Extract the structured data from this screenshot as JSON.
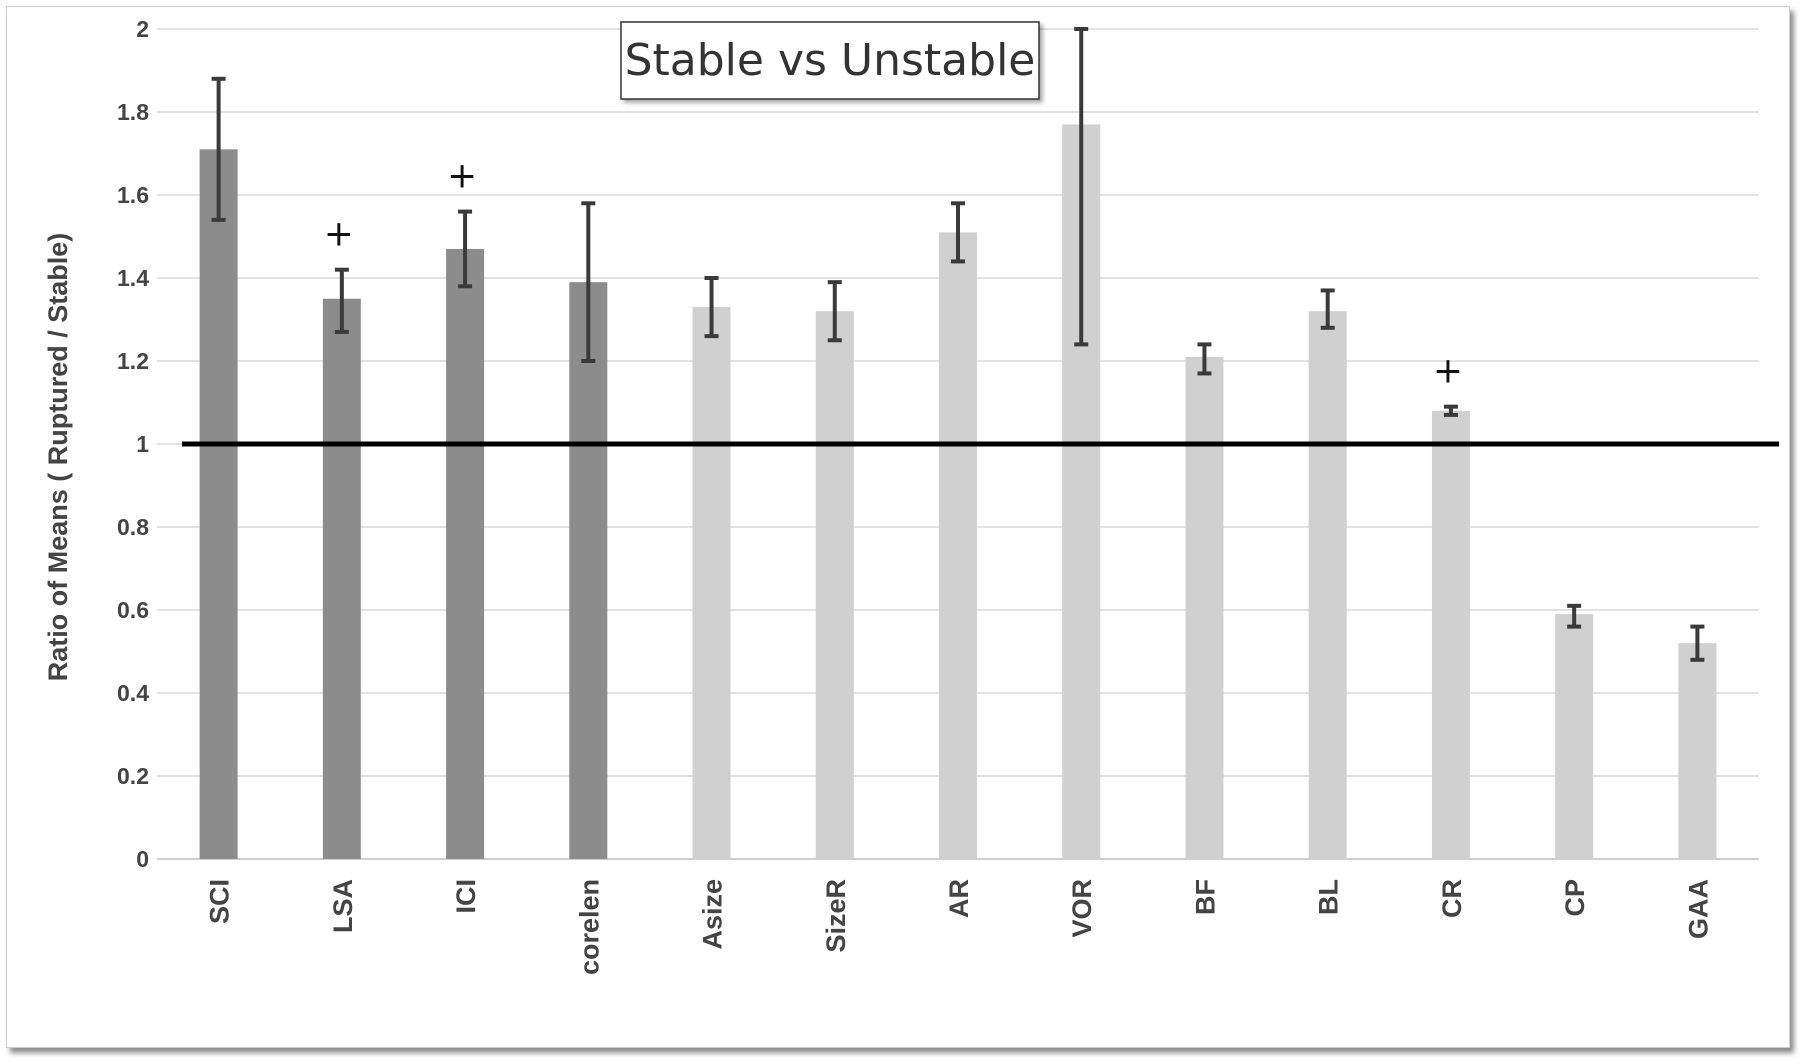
{
  "chart_data": {
    "type": "bar",
    "title": "Stable vs Unstable",
    "ylabel": "Ratio of Means ( Ruptured / Stable)",
    "xlabel": "",
    "ylim": [
      0,
      2
    ],
    "yticks": [
      "0",
      "0.2",
      "0.4",
      "0.6",
      "0.8",
      "1",
      "1.2",
      "1.4",
      "1.6",
      "1.8",
      "2"
    ],
    "grid": true,
    "reference_line": 1,
    "categories": [
      "SCI",
      "LSA",
      "ICI",
      "corelen",
      "Asize",
      "SizeR",
      "AR",
      "VOR",
      "BF",
      "BL",
      "CR",
      "CP",
      "GAA"
    ],
    "values": [
      1.71,
      1.35,
      1.47,
      1.39,
      1.33,
      1.32,
      1.51,
      1.77,
      1.21,
      1.32,
      1.08,
      0.59,
      0.52
    ],
    "error_low": [
      1.54,
      1.27,
      1.38,
      1.2,
      1.26,
      1.25,
      1.44,
      1.24,
      1.17,
      1.28,
      1.07,
      0.56,
      0.48
    ],
    "error_high": [
      1.88,
      1.42,
      1.56,
      1.58,
      1.4,
      1.39,
      1.58,
      2.0,
      1.24,
      1.37,
      1.09,
      0.61,
      0.56
    ],
    "bar_group": [
      "dark",
      "dark",
      "dark",
      "dark",
      "light",
      "light",
      "light",
      "light",
      "light",
      "light",
      "light",
      "light",
      "light"
    ],
    "annotations": [
      {
        "category": "LSA",
        "text": "+"
      },
      {
        "category": "ICI",
        "text": "+"
      },
      {
        "category": "CR",
        "text": "+"
      }
    ],
    "colors": {
      "dark": "#8c8c8c",
      "light": "#d0d0d0",
      "error_bar": "#3a3a3a",
      "grid": "#d9d9d9",
      "reference": "#000000"
    }
  }
}
